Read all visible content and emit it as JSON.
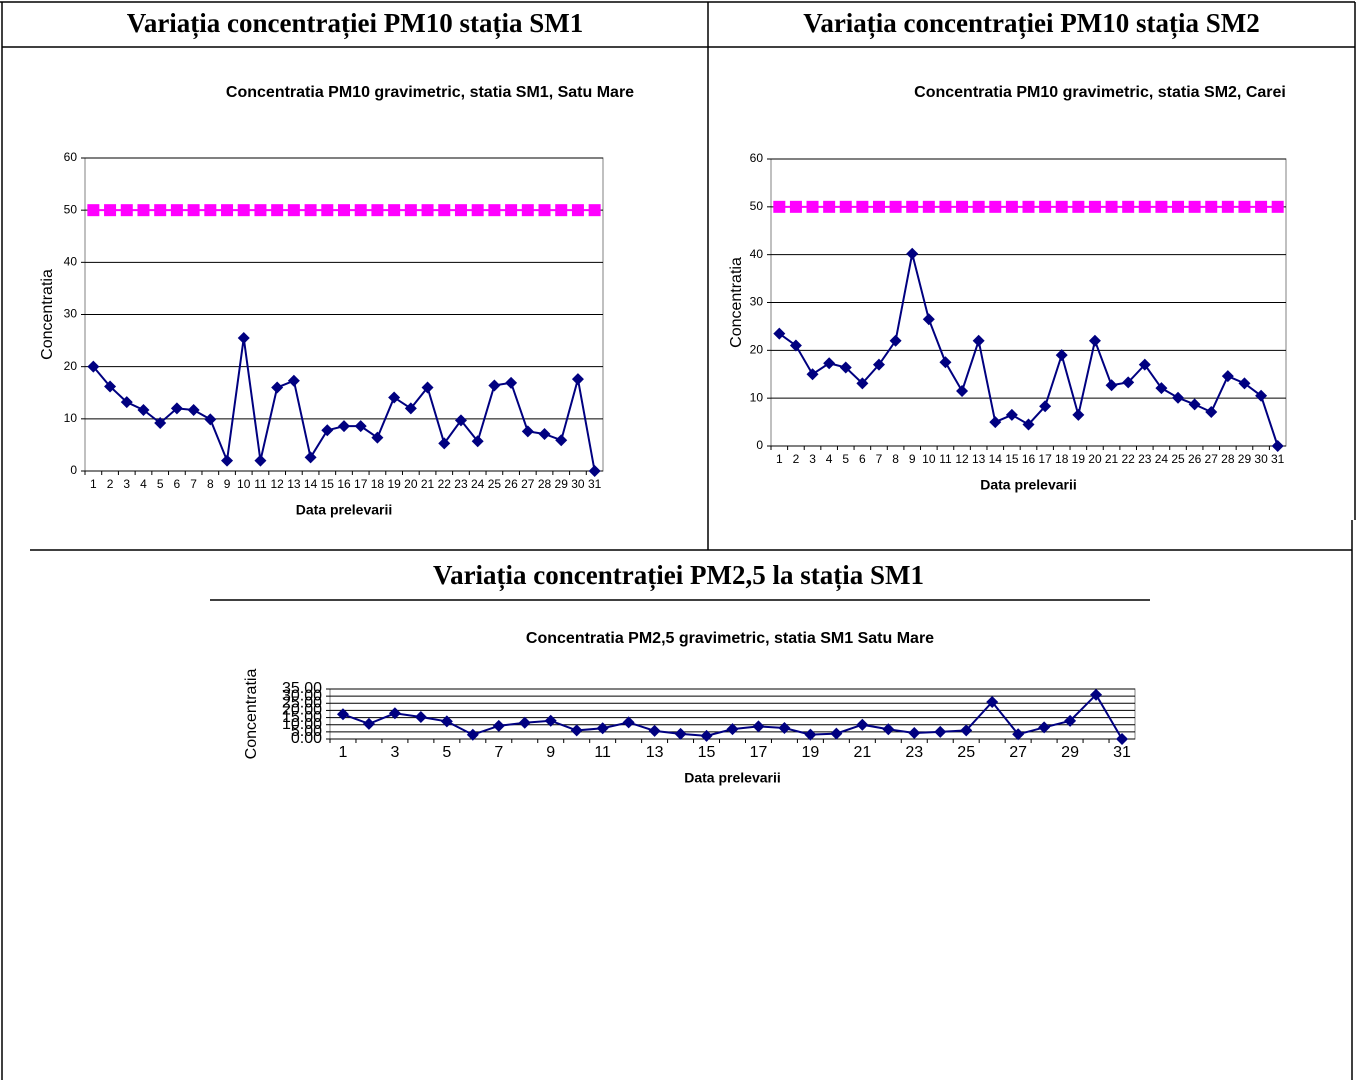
{
  "headings": [
    "Variația concentrației PM10 stația SM1",
    "Variația concentrației PM10 stația SM2",
    "Variația concentrației PM2,5 la stația SM1"
  ],
  "chart_data": [
    {
      "type": "line",
      "title": "Concentratia PM10 gravimetric, statia SM1, Satu Mare",
      "x_label": "Data prelevarii",
      "y_label": "Concentratia",
      "categories": [
        1,
        2,
        3,
        4,
        5,
        6,
        7,
        8,
        9,
        10,
        11,
        12,
        13,
        14,
        15,
        16,
        17,
        18,
        19,
        20,
        21,
        22,
        23,
        24,
        25,
        26,
        27,
        28,
        29,
        30,
        31
      ],
      "series": [
        {
          "color": "#000080",
          "marker": "diamond",
          "values": [
            20,
            16.2,
            13.2,
            11.7,
            9.2,
            12,
            11.7,
            9.9,
            2,
            25.5,
            2,
            16,
            17.3,
            2.6,
            7.8,
            8.6,
            8.6,
            6.4,
            14.1,
            12,
            16,
            5.3,
            9.7,
            5.7,
            16.4,
            16.9,
            7.6,
            7.1,
            5.9,
            17.6,
            0
          ]
        },
        {
          "color": "#ff00ff",
          "marker": "square",
          "values": [
            50,
            50,
            50,
            50,
            50,
            50,
            50,
            50,
            50,
            50,
            50,
            50,
            50,
            50,
            50,
            50,
            50,
            50,
            50,
            50,
            50,
            50,
            50,
            50,
            50,
            50,
            50,
            50,
            50,
            50,
            50
          ]
        }
      ],
      "ylim": [
        0,
        60
      ],
      "yticks": [
        0,
        10,
        20,
        30,
        40,
        50,
        60
      ],
      "grid": true
    },
    {
      "type": "line",
      "title": "Concentratia PM10 gravimetric, statia SM2, Carei",
      "x_label": "Data prelevarii",
      "y_label": "Concentratia",
      "categories": [
        1,
        2,
        3,
        4,
        5,
        6,
        7,
        8,
        9,
        10,
        11,
        12,
        13,
        14,
        15,
        16,
        17,
        18,
        19,
        20,
        21,
        22,
        23,
        24,
        25,
        26,
        27,
        28,
        29,
        30,
        31
      ],
      "series": [
        {
          "color": "#000080",
          "marker": "diamond",
          "values": [
            23.5,
            21,
            15,
            17.3,
            16.4,
            13.1,
            17,
            22,
            40.2,
            26.5,
            17.5,
            11.5,
            22,
            5,
            6.5,
            4.5,
            8.3,
            19,
            6.5,
            22,
            12.7,
            13.3,
            17,
            12.1,
            10.1,
            8.7,
            7.1,
            14.6,
            13.1,
            10.5,
            0
          ]
        },
        {
          "color": "#ff00ff",
          "marker": "square",
          "values": [
            50,
            50,
            50,
            50,
            50,
            50,
            50,
            50,
            50,
            50,
            50,
            50,
            50,
            50,
            50,
            50,
            50,
            50,
            50,
            50,
            50,
            50,
            50,
            50,
            50,
            50,
            50,
            50,
            50,
            50,
            50
          ]
        }
      ],
      "ylim": [
        0,
        60
      ],
      "yticks": [
        0,
        10,
        20,
        30,
        40,
        50,
        60
      ],
      "grid": true
    },
    {
      "type": "line",
      "title": "Concentratia PM2,5 gravimetric, statia SM1 Satu Mare",
      "x_label": "Data prelevarii",
      "y_label": "Concentratia",
      "categories": [
        1,
        null,
        3,
        null,
        5,
        null,
        7,
        null,
        9,
        null,
        11,
        null,
        13,
        null,
        15,
        null,
        17,
        null,
        19,
        null,
        21,
        null,
        23,
        null,
        25,
        null,
        27,
        null,
        29,
        null,
        31
      ],
      "series": [
        {
          "color": "#000080",
          "marker": "diamond",
          "values": [
            17.3,
            10.6,
            18,
            15.4,
            12.3,
            3,
            9.2,
            11.4,
            12.8,
            6,
            7.5,
            11.6,
            5.7,
            3.6,
            2.2,
            6.9,
            8.8,
            7.7,
            3.1,
            3.8,
            10,
            6.8,
            4.2,
            5,
            6,
            25.9,
            3.3,
            8.1,
            12.7,
            31,
            0
          ]
        }
      ],
      "ylim": [
        0,
        35
      ],
      "yticks": [
        {
          "value": 0,
          "label": "0.00"
        },
        {
          "value": 5,
          "label": "5.00"
        },
        {
          "value": 10,
          "label": "10.00"
        },
        {
          "value": 15,
          "label": "15.00"
        },
        {
          "value": 20,
          "label": "20.00"
        },
        {
          "value": 25,
          "label": "25.00"
        },
        {
          "value": 30,
          "label": "30.00"
        },
        {
          "value": 35,
          "label": "35.00"
        }
      ],
      "grid": true
    }
  ]
}
